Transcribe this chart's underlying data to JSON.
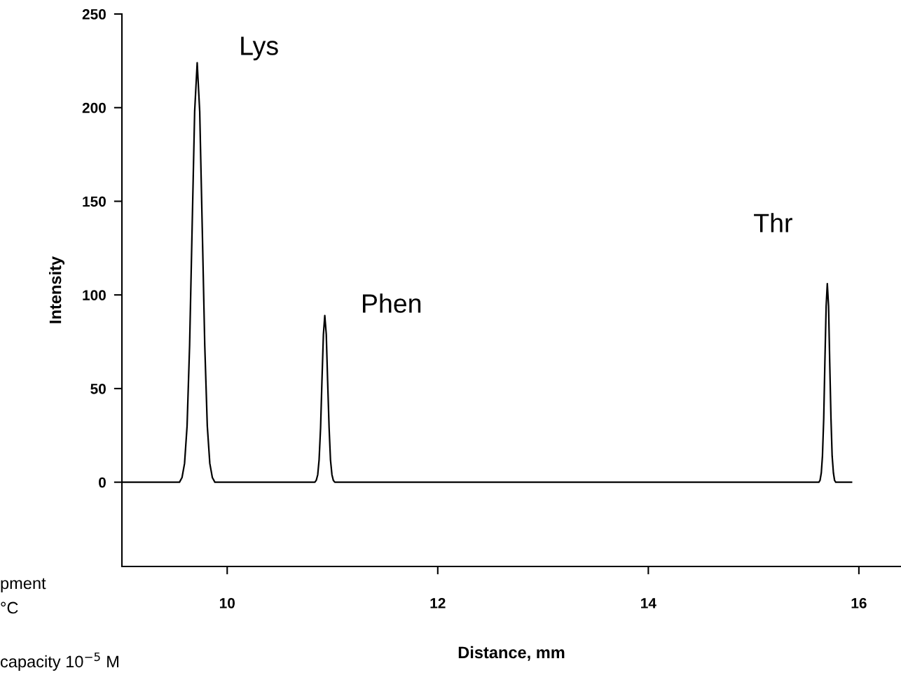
{
  "chart_data": {
    "type": "line",
    "xlabel": "Distance, mm",
    "ylabel": "Intensity",
    "series": [
      {
        "color": "#000000",
        "x": [
          9.0,
          9.547,
          9.571,
          9.595,
          9.619,
          9.643,
          9.667,
          9.691,
          9.715,
          9.739,
          9.763,
          9.787,
          9.811,
          9.835,
          9.859,
          9.883,
          10.833,
          10.846,
          10.86,
          10.873,
          10.887,
          10.9,
          10.914,
          10.927,
          10.941,
          10.954,
          10.968,
          10.981,
          10.995,
          11.008,
          11.022,
          15.62,
          15.631,
          15.643,
          15.654,
          15.666,
          15.677,
          15.689,
          15.7,
          15.712,
          15.723,
          15.735,
          15.746,
          15.758,
          15.769,
          15.78,
          15.93
        ],
        "values": [
          0,
          0,
          2.5,
          10,
          30,
          73,
          136,
          198,
          224,
          198,
          136,
          73,
          30,
          10,
          2.5,
          0,
          0,
          1,
          4,
          12,
          29,
          54,
          79,
          89,
          79,
          54,
          29,
          12,
          4,
          1,
          0,
          0,
          1,
          5,
          14,
          34,
          64,
          94,
          106,
          94,
          64,
          34,
          14,
          5,
          1,
          0,
          0
        ]
      }
    ],
    "xlim": [
      9.0,
      16.4
    ],
    "xticks": [
      10,
      12,
      14,
      16
    ],
    "ylim": [
      -45,
      250
    ],
    "yticks": [
      0,
      50,
      100,
      150,
      200,
      250
    ],
    "grid": false,
    "marker": "none",
    "line_style": "solid",
    "annotations": [
      {
        "text": "Lys",
        "x": 9.715,
        "y": 224
      },
      {
        "text": "Phen",
        "x": 10.927,
        "y": 89
      },
      {
        "text": "Thr",
        "x": 15.7,
        "y": 106
      },
      "pment",
      "°C",
      "capacity 10$^{−5}$ M"
    ]
  }
}
